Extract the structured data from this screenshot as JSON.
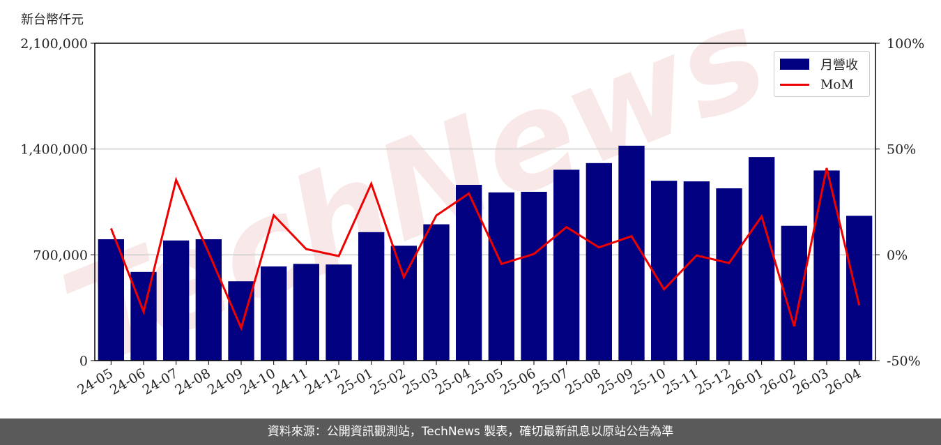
{
  "unit_label": "新台幣仟元",
  "footer": "資料來源：公開資訊觀測站，TechNews 製表，確切最新訊息以原站公告為準",
  "watermark": "TechNews",
  "colors": {
    "bar": "#000080",
    "line": "#ee0000",
    "grid": "#cccccc"
  },
  "chart_data": {
    "type": "bar",
    "categories": [
      "24-05",
      "24-06",
      "24-07",
      "24-08",
      "24-09",
      "24-10",
      "24-11",
      "24-12",
      "25-01",
      "25-02",
      "25-03",
      "25-04",
      "25-05",
      "25-06",
      "25-07",
      "25-08",
      "25-09",
      "25-10",
      "25-11",
      "25-12",
      "26-01",
      "26-02",
      "26-03",
      "26-04"
    ],
    "series": [
      {
        "name": "月營收",
        "axis": "left",
        "type": "bar",
        "values": [
          803000,
          587000,
          795000,
          803000,
          525000,
          623000,
          640000,
          636000,
          850000,
          760000,
          902000,
          1163000,
          1113000,
          1117000,
          1263000,
          1307000,
          1422000,
          1190000,
          1186000,
          1140000,
          1347000,
          892000,
          1258000,
          958000
        ]
      },
      {
        "name": "MoM",
        "axis": "right",
        "type": "line",
        "values": [
          12.5,
          -26.9,
          35.4,
          1.0,
          -34.6,
          18.7,
          2.7,
          -0.6,
          33.6,
          -10.6,
          18.6,
          29.0,
          -4.3,
          0.4,
          13.1,
          3.5,
          8.8,
          -16.3,
          -0.3,
          -3.9,
          18.2,
          -33.8,
          41.0,
          -23.9
        ]
      }
    ],
    "y_left": {
      "ylim": [
        0,
        2100000
      ],
      "ticks": [
        0,
        700000,
        1400000,
        2100000
      ],
      "tick_labels": [
        "0",
        "700,000",
        "1,400,000",
        "2,100,000"
      ]
    },
    "y_right": {
      "ylim": [
        -50,
        100
      ],
      "ticks": [
        -50,
        0,
        50,
        100
      ],
      "tick_labels": [
        "-50%",
        "0%",
        "50%",
        "100%"
      ]
    },
    "grid": true,
    "legend_position": "top-right"
  }
}
